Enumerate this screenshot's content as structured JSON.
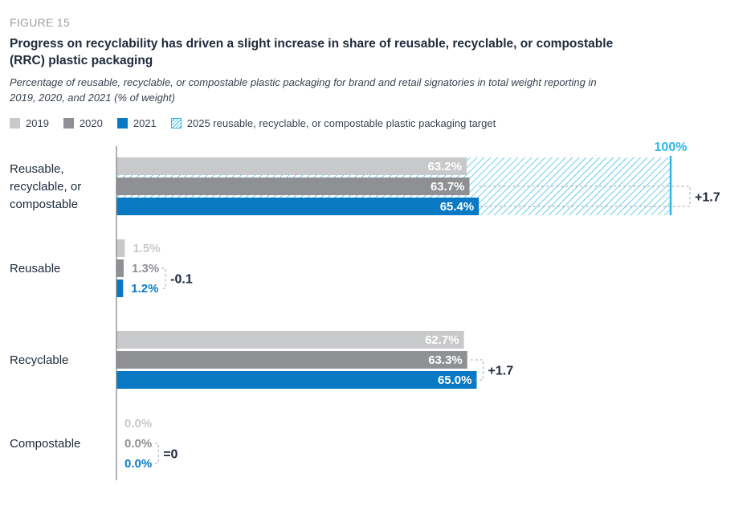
{
  "figure_label": "FIGURE 15",
  "title": "Progress on recyclability has driven a slight increase in share of reusable, recyclable, or compostable (RRC) plastic packaging",
  "subtitle": "Percentage of reusable, recyclable, or compostable plastic packaging for brand and retail signatories in total weight reporting in 2019, 2020, and 2021 (% of weight)",
  "colors": {
    "y2019": "#c8c9cb",
    "y2020": "#8e9094",
    "y2021": "#0a79c4",
    "target": "#2db9e8",
    "axis": "#7b7e83",
    "bracket": "#a3a6aa"
  },
  "chart_data": {
    "type": "bar",
    "orientation": "horizontal",
    "categories": [
      "Reusable,\nrecyclable, or\ncompostable",
      "Reusable",
      "Recyclable",
      "Compostable"
    ],
    "series": [
      {
        "name": "2019",
        "values": [
          63.2,
          1.5,
          62.7,
          0.0
        ],
        "labels": [
          "63.2%",
          "1.5%",
          "62.7%",
          "0.0%"
        ]
      },
      {
        "name": "2020",
        "values": [
          63.7,
          1.3,
          63.3,
          0.0
        ],
        "labels": [
          "63.7%",
          "1.3%",
          "63.3%",
          "0.0%"
        ]
      },
      {
        "name": "2021",
        "values": [
          65.4,
          1.2,
          65.0,
          0.0
        ],
        "labels": [
          "65.4%",
          "1.2%",
          "65.0%",
          "0.0%"
        ]
      }
    ],
    "target": {
      "name": "2025 reusable, recyclable, or compostable plastic packaging target",
      "category": "Reusable,\nrecyclable, or\ncompostable",
      "value": 100,
      "label": "100%"
    },
    "differences": [
      "+1.7",
      "-0.1",
      "+1.7",
      "=0"
    ],
    "xlim": [
      0,
      100
    ],
    "legend_position": "top-left",
    "grid": false
  }
}
